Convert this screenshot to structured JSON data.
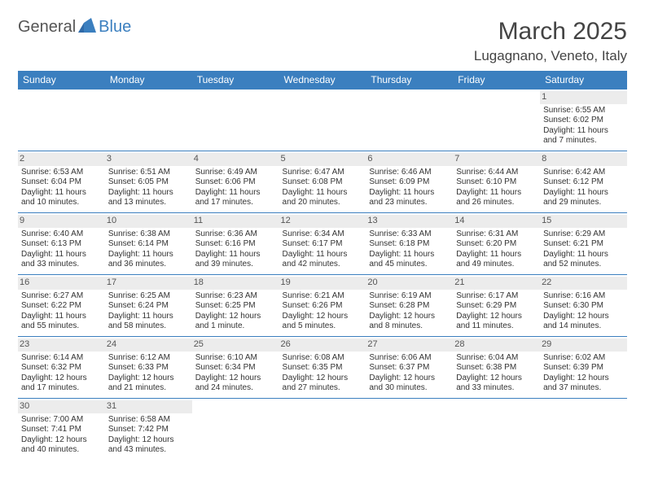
{
  "brand": {
    "part1": "General",
    "part2": "Blue",
    "mark_color": "#2f6aa8"
  },
  "title": "March 2025",
  "location": "Lugagnano, Veneto, Italy",
  "header_bg": "#3b7fbf",
  "daynum_bg": "#ececec",
  "border_color": "#3b7fbf",
  "dow": [
    "Sunday",
    "Monday",
    "Tuesday",
    "Wednesday",
    "Thursday",
    "Friday",
    "Saturday"
  ],
  "weeks": [
    [
      null,
      null,
      null,
      null,
      null,
      null,
      {
        "n": "1",
        "sr": "Sunrise: 6:55 AM",
        "ss": "Sunset: 6:02 PM",
        "dl": "Daylight: 11 hours and 7 minutes."
      }
    ],
    [
      {
        "n": "2",
        "sr": "Sunrise: 6:53 AM",
        "ss": "Sunset: 6:04 PM",
        "dl": "Daylight: 11 hours and 10 minutes."
      },
      {
        "n": "3",
        "sr": "Sunrise: 6:51 AM",
        "ss": "Sunset: 6:05 PM",
        "dl": "Daylight: 11 hours and 13 minutes."
      },
      {
        "n": "4",
        "sr": "Sunrise: 6:49 AM",
        "ss": "Sunset: 6:06 PM",
        "dl": "Daylight: 11 hours and 17 minutes."
      },
      {
        "n": "5",
        "sr": "Sunrise: 6:47 AM",
        "ss": "Sunset: 6:08 PM",
        "dl": "Daylight: 11 hours and 20 minutes."
      },
      {
        "n": "6",
        "sr": "Sunrise: 6:46 AM",
        "ss": "Sunset: 6:09 PM",
        "dl": "Daylight: 11 hours and 23 minutes."
      },
      {
        "n": "7",
        "sr": "Sunrise: 6:44 AM",
        "ss": "Sunset: 6:10 PM",
        "dl": "Daylight: 11 hours and 26 minutes."
      },
      {
        "n": "8",
        "sr": "Sunrise: 6:42 AM",
        "ss": "Sunset: 6:12 PM",
        "dl": "Daylight: 11 hours and 29 minutes."
      }
    ],
    [
      {
        "n": "9",
        "sr": "Sunrise: 6:40 AM",
        "ss": "Sunset: 6:13 PM",
        "dl": "Daylight: 11 hours and 33 minutes."
      },
      {
        "n": "10",
        "sr": "Sunrise: 6:38 AM",
        "ss": "Sunset: 6:14 PM",
        "dl": "Daylight: 11 hours and 36 minutes."
      },
      {
        "n": "11",
        "sr": "Sunrise: 6:36 AM",
        "ss": "Sunset: 6:16 PM",
        "dl": "Daylight: 11 hours and 39 minutes."
      },
      {
        "n": "12",
        "sr": "Sunrise: 6:34 AM",
        "ss": "Sunset: 6:17 PM",
        "dl": "Daylight: 11 hours and 42 minutes."
      },
      {
        "n": "13",
        "sr": "Sunrise: 6:33 AM",
        "ss": "Sunset: 6:18 PM",
        "dl": "Daylight: 11 hours and 45 minutes."
      },
      {
        "n": "14",
        "sr": "Sunrise: 6:31 AM",
        "ss": "Sunset: 6:20 PM",
        "dl": "Daylight: 11 hours and 49 minutes."
      },
      {
        "n": "15",
        "sr": "Sunrise: 6:29 AM",
        "ss": "Sunset: 6:21 PM",
        "dl": "Daylight: 11 hours and 52 minutes."
      }
    ],
    [
      {
        "n": "16",
        "sr": "Sunrise: 6:27 AM",
        "ss": "Sunset: 6:22 PM",
        "dl": "Daylight: 11 hours and 55 minutes."
      },
      {
        "n": "17",
        "sr": "Sunrise: 6:25 AM",
        "ss": "Sunset: 6:24 PM",
        "dl": "Daylight: 11 hours and 58 minutes."
      },
      {
        "n": "18",
        "sr": "Sunrise: 6:23 AM",
        "ss": "Sunset: 6:25 PM",
        "dl": "Daylight: 12 hours and 1 minute."
      },
      {
        "n": "19",
        "sr": "Sunrise: 6:21 AM",
        "ss": "Sunset: 6:26 PM",
        "dl": "Daylight: 12 hours and 5 minutes."
      },
      {
        "n": "20",
        "sr": "Sunrise: 6:19 AM",
        "ss": "Sunset: 6:28 PM",
        "dl": "Daylight: 12 hours and 8 minutes."
      },
      {
        "n": "21",
        "sr": "Sunrise: 6:17 AM",
        "ss": "Sunset: 6:29 PM",
        "dl": "Daylight: 12 hours and 11 minutes."
      },
      {
        "n": "22",
        "sr": "Sunrise: 6:16 AM",
        "ss": "Sunset: 6:30 PM",
        "dl": "Daylight: 12 hours and 14 minutes."
      }
    ],
    [
      {
        "n": "23",
        "sr": "Sunrise: 6:14 AM",
        "ss": "Sunset: 6:32 PM",
        "dl": "Daylight: 12 hours and 17 minutes."
      },
      {
        "n": "24",
        "sr": "Sunrise: 6:12 AM",
        "ss": "Sunset: 6:33 PM",
        "dl": "Daylight: 12 hours and 21 minutes."
      },
      {
        "n": "25",
        "sr": "Sunrise: 6:10 AM",
        "ss": "Sunset: 6:34 PM",
        "dl": "Daylight: 12 hours and 24 minutes."
      },
      {
        "n": "26",
        "sr": "Sunrise: 6:08 AM",
        "ss": "Sunset: 6:35 PM",
        "dl": "Daylight: 12 hours and 27 minutes."
      },
      {
        "n": "27",
        "sr": "Sunrise: 6:06 AM",
        "ss": "Sunset: 6:37 PM",
        "dl": "Daylight: 12 hours and 30 minutes."
      },
      {
        "n": "28",
        "sr": "Sunrise: 6:04 AM",
        "ss": "Sunset: 6:38 PM",
        "dl": "Daylight: 12 hours and 33 minutes."
      },
      {
        "n": "29",
        "sr": "Sunrise: 6:02 AM",
        "ss": "Sunset: 6:39 PM",
        "dl": "Daylight: 12 hours and 37 minutes."
      }
    ],
    [
      {
        "n": "30",
        "sr": "Sunrise: 7:00 AM",
        "ss": "Sunset: 7:41 PM",
        "dl": "Daylight: 12 hours and 40 minutes."
      },
      {
        "n": "31",
        "sr": "Sunrise: 6:58 AM",
        "ss": "Sunset: 7:42 PM",
        "dl": "Daylight: 12 hours and 43 minutes."
      },
      null,
      null,
      null,
      null,
      null
    ]
  ]
}
